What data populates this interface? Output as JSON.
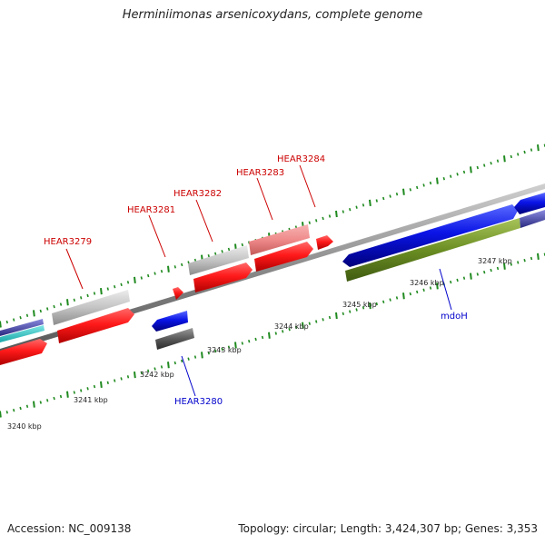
{
  "title": "Herminiimonas arsenicoxydans, complete genome",
  "footer": {
    "accession": "Accession: NC_009138",
    "topology": "Topology: circular; Length: 3,424,307 bp; Genes: 3,353"
  },
  "genes_top": [
    {
      "id": "HEAR3279",
      "color": "#cc0000"
    },
    {
      "id": "HEAR3281",
      "color": "#cc0000"
    },
    {
      "id": "HEAR3282",
      "color": "#cc0000"
    },
    {
      "id": "HEAR3283",
      "color": "#cc0000"
    },
    {
      "id": "HEAR3284",
      "color": "#cc0000"
    }
  ],
  "genes_bottom": [
    {
      "id": "HEAR3280",
      "color": "#0000cc"
    },
    {
      "id": "mdoH",
      "color": "#0000cc"
    }
  ],
  "scale": {
    "labels": [
      "3240 kbp",
      "3241 kbp",
      "3242 kbp",
      "3243 kbp",
      "3244 kbp",
      "3245 kbp",
      "3246 kbp",
      "3247 kbp"
    ]
  },
  "colors": {
    "backbone": "#8a8a8a",
    "forward_cds": "#ff1a1a",
    "reverse_cds": "#0a14e6",
    "tick_mark": "#1f8a1f",
    "olive_feature": "#6b8e23",
    "gray_feature": "#c0c0c0",
    "dark_gray_feature": "#555555",
    "pink_feature": "#ef8a8a"
  }
}
